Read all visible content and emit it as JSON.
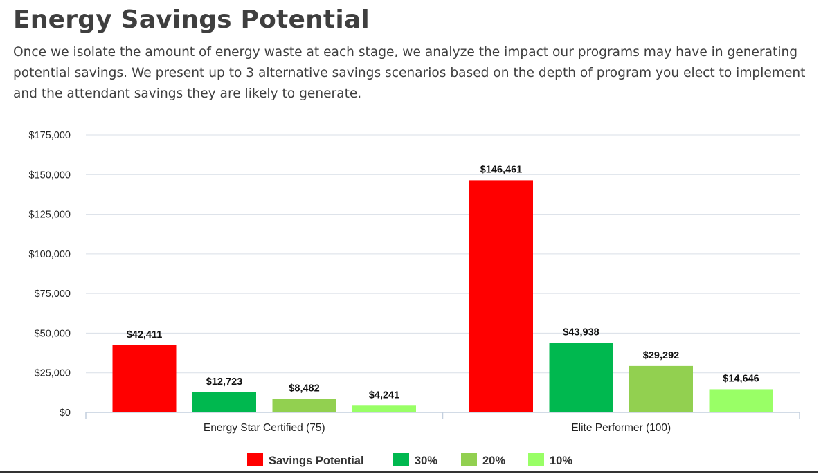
{
  "page": {
    "title": "Energy Savings Potential",
    "intro": "Once we isolate the amount of energy waste at each stage, we analyze the impact our programs may have in generating potential savings. We present up to 3 alternative savings scenarios based on the depth of program you elect to implement and the attendant savings they are likely to generate."
  },
  "chart_data": {
    "type": "bar",
    "title": "",
    "xlabel": "",
    "ylabel": "",
    "categories": [
      "Energy Star Certified (75)",
      "Elite Performer (100)"
    ],
    "series": [
      {
        "name": "Savings Potential",
        "color": "#ff0000",
        "values": [
          42411,
          146461
        ],
        "labels": [
          "$42,411",
          "$146,461"
        ]
      },
      {
        "name": "30%",
        "color": "#00b84f",
        "values": [
          12723,
          43938
        ],
        "labels": [
          "$12,723",
          "$43,938"
        ]
      },
      {
        "name": "20%",
        "color": "#92d050",
        "values": [
          8482,
          29292
        ],
        "labels": [
          "$8,482",
          "$29,292"
        ]
      },
      {
        "name": "10%",
        "color": "#99ff66",
        "values": [
          4241,
          14646
        ],
        "labels": [
          "$4,241",
          "$14,646"
        ]
      }
    ],
    "ylim": [
      0,
      175000
    ],
    "yticks": [
      0,
      25000,
      50000,
      75000,
      100000,
      125000,
      150000,
      175000
    ],
    "ytick_labels": [
      "$0",
      "$25,000",
      "$50,000",
      "$75,000",
      "$100,000",
      "$125,000",
      "$150,000",
      "$175,000"
    ],
    "grid": true,
    "legend_position": "bottom-center"
  }
}
